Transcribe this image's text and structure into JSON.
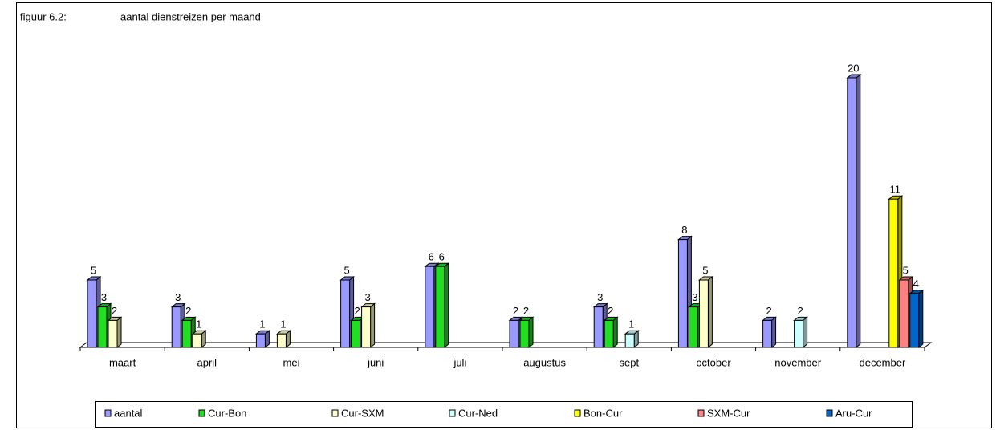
{
  "chart_data": {
    "type": "bar3d",
    "label": "figuur 6.2:",
    "title": "aantal dienstreizen per maand",
    "categories": [
      "maart",
      "april",
      "mei",
      "juni",
      "juli",
      "augustus",
      "sept",
      "october",
      "november",
      "december"
    ],
    "series": [
      {
        "name": "aantal",
        "color": "#9999ff",
        "values": [
          5,
          3,
          1,
          5,
          6,
          2,
          3,
          8,
          2,
          20
        ]
      },
      {
        "name": "Cur-Bon",
        "color": "#22dd22",
        "values": [
          3,
          2,
          null,
          2,
          6,
          2,
          2,
          3,
          null,
          null
        ]
      },
      {
        "name": "Cur-SXM",
        "color": "#ffffcc",
        "values": [
          2,
          1,
          1,
          3,
          null,
          null,
          null,
          5,
          null,
          null
        ]
      },
      {
        "name": "Cur-Ned",
        "color": "#ccffff",
        "values": [
          null,
          null,
          null,
          null,
          null,
          null,
          1,
          null,
          2,
          null
        ]
      },
      {
        "name": "Bon-Cur",
        "color": "#ffff00",
        "values": [
          null,
          null,
          null,
          null,
          null,
          null,
          null,
          null,
          null,
          11
        ]
      },
      {
        "name": "SXM-Cur",
        "color": "#ff8080",
        "values": [
          null,
          null,
          null,
          null,
          null,
          null,
          null,
          null,
          null,
          5
        ]
      },
      {
        "name": "Aru-Cur",
        "color": "#0066cc",
        "values": [
          null,
          null,
          null,
          null,
          null,
          null,
          null,
          null,
          null,
          4
        ]
      }
    ]
  }
}
